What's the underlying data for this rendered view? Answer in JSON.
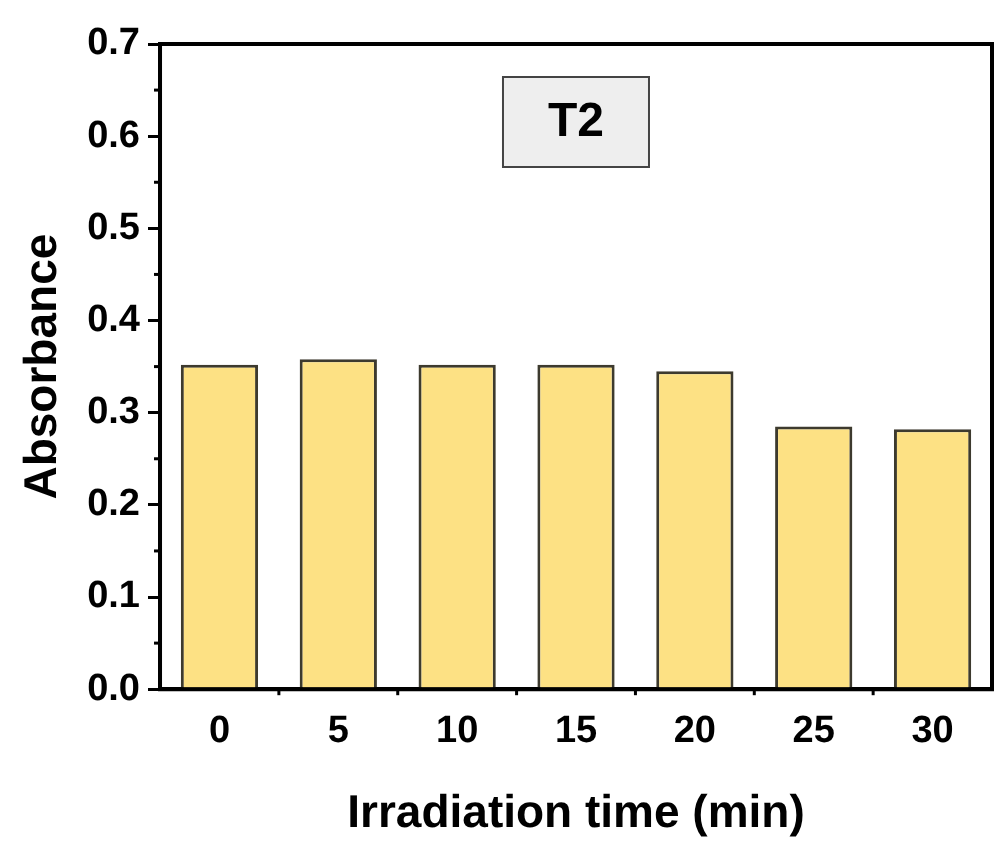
{
  "chart_data": {
    "type": "bar",
    "title": "T2",
    "xlabel": "Irradiation time (min)",
    "ylabel": "Absorbance",
    "categories": [
      "0",
      "5",
      "10",
      "15",
      "20",
      "25",
      "30"
    ],
    "values": [
      0.352,
      0.358,
      0.352,
      0.352,
      0.345,
      0.285,
      0.282
    ],
    "color": "#fde184",
    "ylim": [
      0,
      0.7
    ],
    "yticks": [
      {
        "value": 0,
        "label": "0.0"
      },
      0.1,
      0.2,
      0.3,
      0.4,
      0.5,
      0.6,
      0.7
    ],
    "grid": false,
    "legend": false
  }
}
